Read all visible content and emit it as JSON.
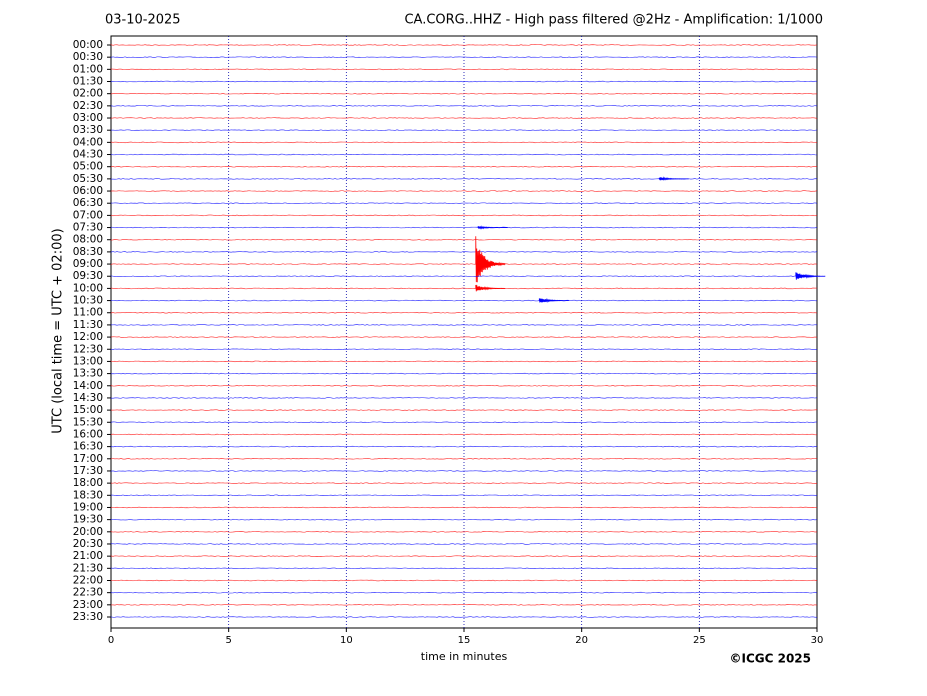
{
  "chart_data": {
    "type": "helicorder",
    "title_left": "03-10-2025",
    "title": "CA.CORG..HHZ - High pass filtered @2Hz - Amplification: 1/1000",
    "y_label": "UTC (local time = UTC + 02:00)",
    "x_label": "time in minutes",
    "copyright": "©ICGC 2025",
    "xlim": [
      0,
      30
    ],
    "xticks": [
      0,
      5,
      10,
      15,
      20,
      25,
      30
    ],
    "grid": true,
    "series": [
      {
        "name": "00:00",
        "color": "#ff0000"
      },
      {
        "name": "00:30",
        "color": "#0000ff"
      },
      {
        "name": "01:00",
        "color": "#ff0000"
      },
      {
        "name": "01:30",
        "color": "#0000ff"
      },
      {
        "name": "02:00",
        "color": "#ff0000"
      },
      {
        "name": "02:30",
        "color": "#0000ff"
      },
      {
        "name": "03:00",
        "color": "#ff0000"
      },
      {
        "name": "03:30",
        "color": "#0000ff"
      },
      {
        "name": "04:00",
        "color": "#ff0000"
      },
      {
        "name": "04:30",
        "color": "#0000ff"
      },
      {
        "name": "05:00",
        "color": "#ff0000"
      },
      {
        "name": "05:30",
        "color": "#0000ff",
        "bursts": [
          {
            "x": 23.3,
            "amplitude": 0.15
          }
        ]
      },
      {
        "name": "06:00",
        "color": "#ff0000"
      },
      {
        "name": "06:30",
        "color": "#0000ff"
      },
      {
        "name": "07:00",
        "color": "#ff0000"
      },
      {
        "name": "07:30",
        "color": "#0000ff",
        "bursts": [
          {
            "x": 15.6,
            "amplitude": 0.12
          }
        ]
      },
      {
        "name": "08:00",
        "color": "#ff0000"
      },
      {
        "name": "08:30",
        "color": "#0000ff"
      },
      {
        "name": "09:00",
        "color": "#ff0000",
        "bursts": [
          {
            "x": 15.5,
            "amplitude": 2.2
          }
        ]
      },
      {
        "name": "09:30",
        "color": "#0000ff",
        "bursts": [
          {
            "x": 29.1,
            "amplitude": 0.4
          }
        ]
      },
      {
        "name": "10:00",
        "color": "#ff0000",
        "bursts": [
          {
            "x": 15.5,
            "amplitude": 0.3
          }
        ]
      },
      {
        "name": "10:30",
        "color": "#0000ff",
        "bursts": [
          {
            "x": 18.2,
            "amplitude": 0.25
          }
        ]
      },
      {
        "name": "11:00",
        "color": "#ff0000"
      },
      {
        "name": "11:30",
        "color": "#0000ff"
      },
      {
        "name": "12:00",
        "color": "#ff0000"
      },
      {
        "name": "12:30",
        "color": "#0000ff"
      },
      {
        "name": "13:00",
        "color": "#ff0000"
      },
      {
        "name": "13:30",
        "color": "#0000ff"
      },
      {
        "name": "14:00",
        "color": "#ff0000"
      },
      {
        "name": "14:30",
        "color": "#0000ff"
      },
      {
        "name": "15:00",
        "color": "#ff0000"
      },
      {
        "name": "15:30",
        "color": "#0000ff"
      },
      {
        "name": "16:00",
        "color": "#ff0000"
      },
      {
        "name": "16:30",
        "color": "#0000ff"
      },
      {
        "name": "17:00",
        "color": "#ff0000"
      },
      {
        "name": "17:30",
        "color": "#0000ff"
      },
      {
        "name": "18:00",
        "color": "#ff0000"
      },
      {
        "name": "18:30",
        "color": "#0000ff"
      },
      {
        "name": "19:00",
        "color": "#ff0000"
      },
      {
        "name": "19:30",
        "color": "#0000ff"
      },
      {
        "name": "20:00",
        "color": "#ff0000"
      },
      {
        "name": "20:30",
        "color": "#0000ff"
      },
      {
        "name": "21:00",
        "color": "#ff0000"
      },
      {
        "name": "21:30",
        "color": "#0000ff"
      },
      {
        "name": "22:00",
        "color": "#ff0000"
      },
      {
        "name": "22:30",
        "color": "#0000ff"
      },
      {
        "name": "23:00",
        "color": "#ff0000"
      },
      {
        "name": "23:30",
        "color": "#0000ff"
      }
    ]
  }
}
